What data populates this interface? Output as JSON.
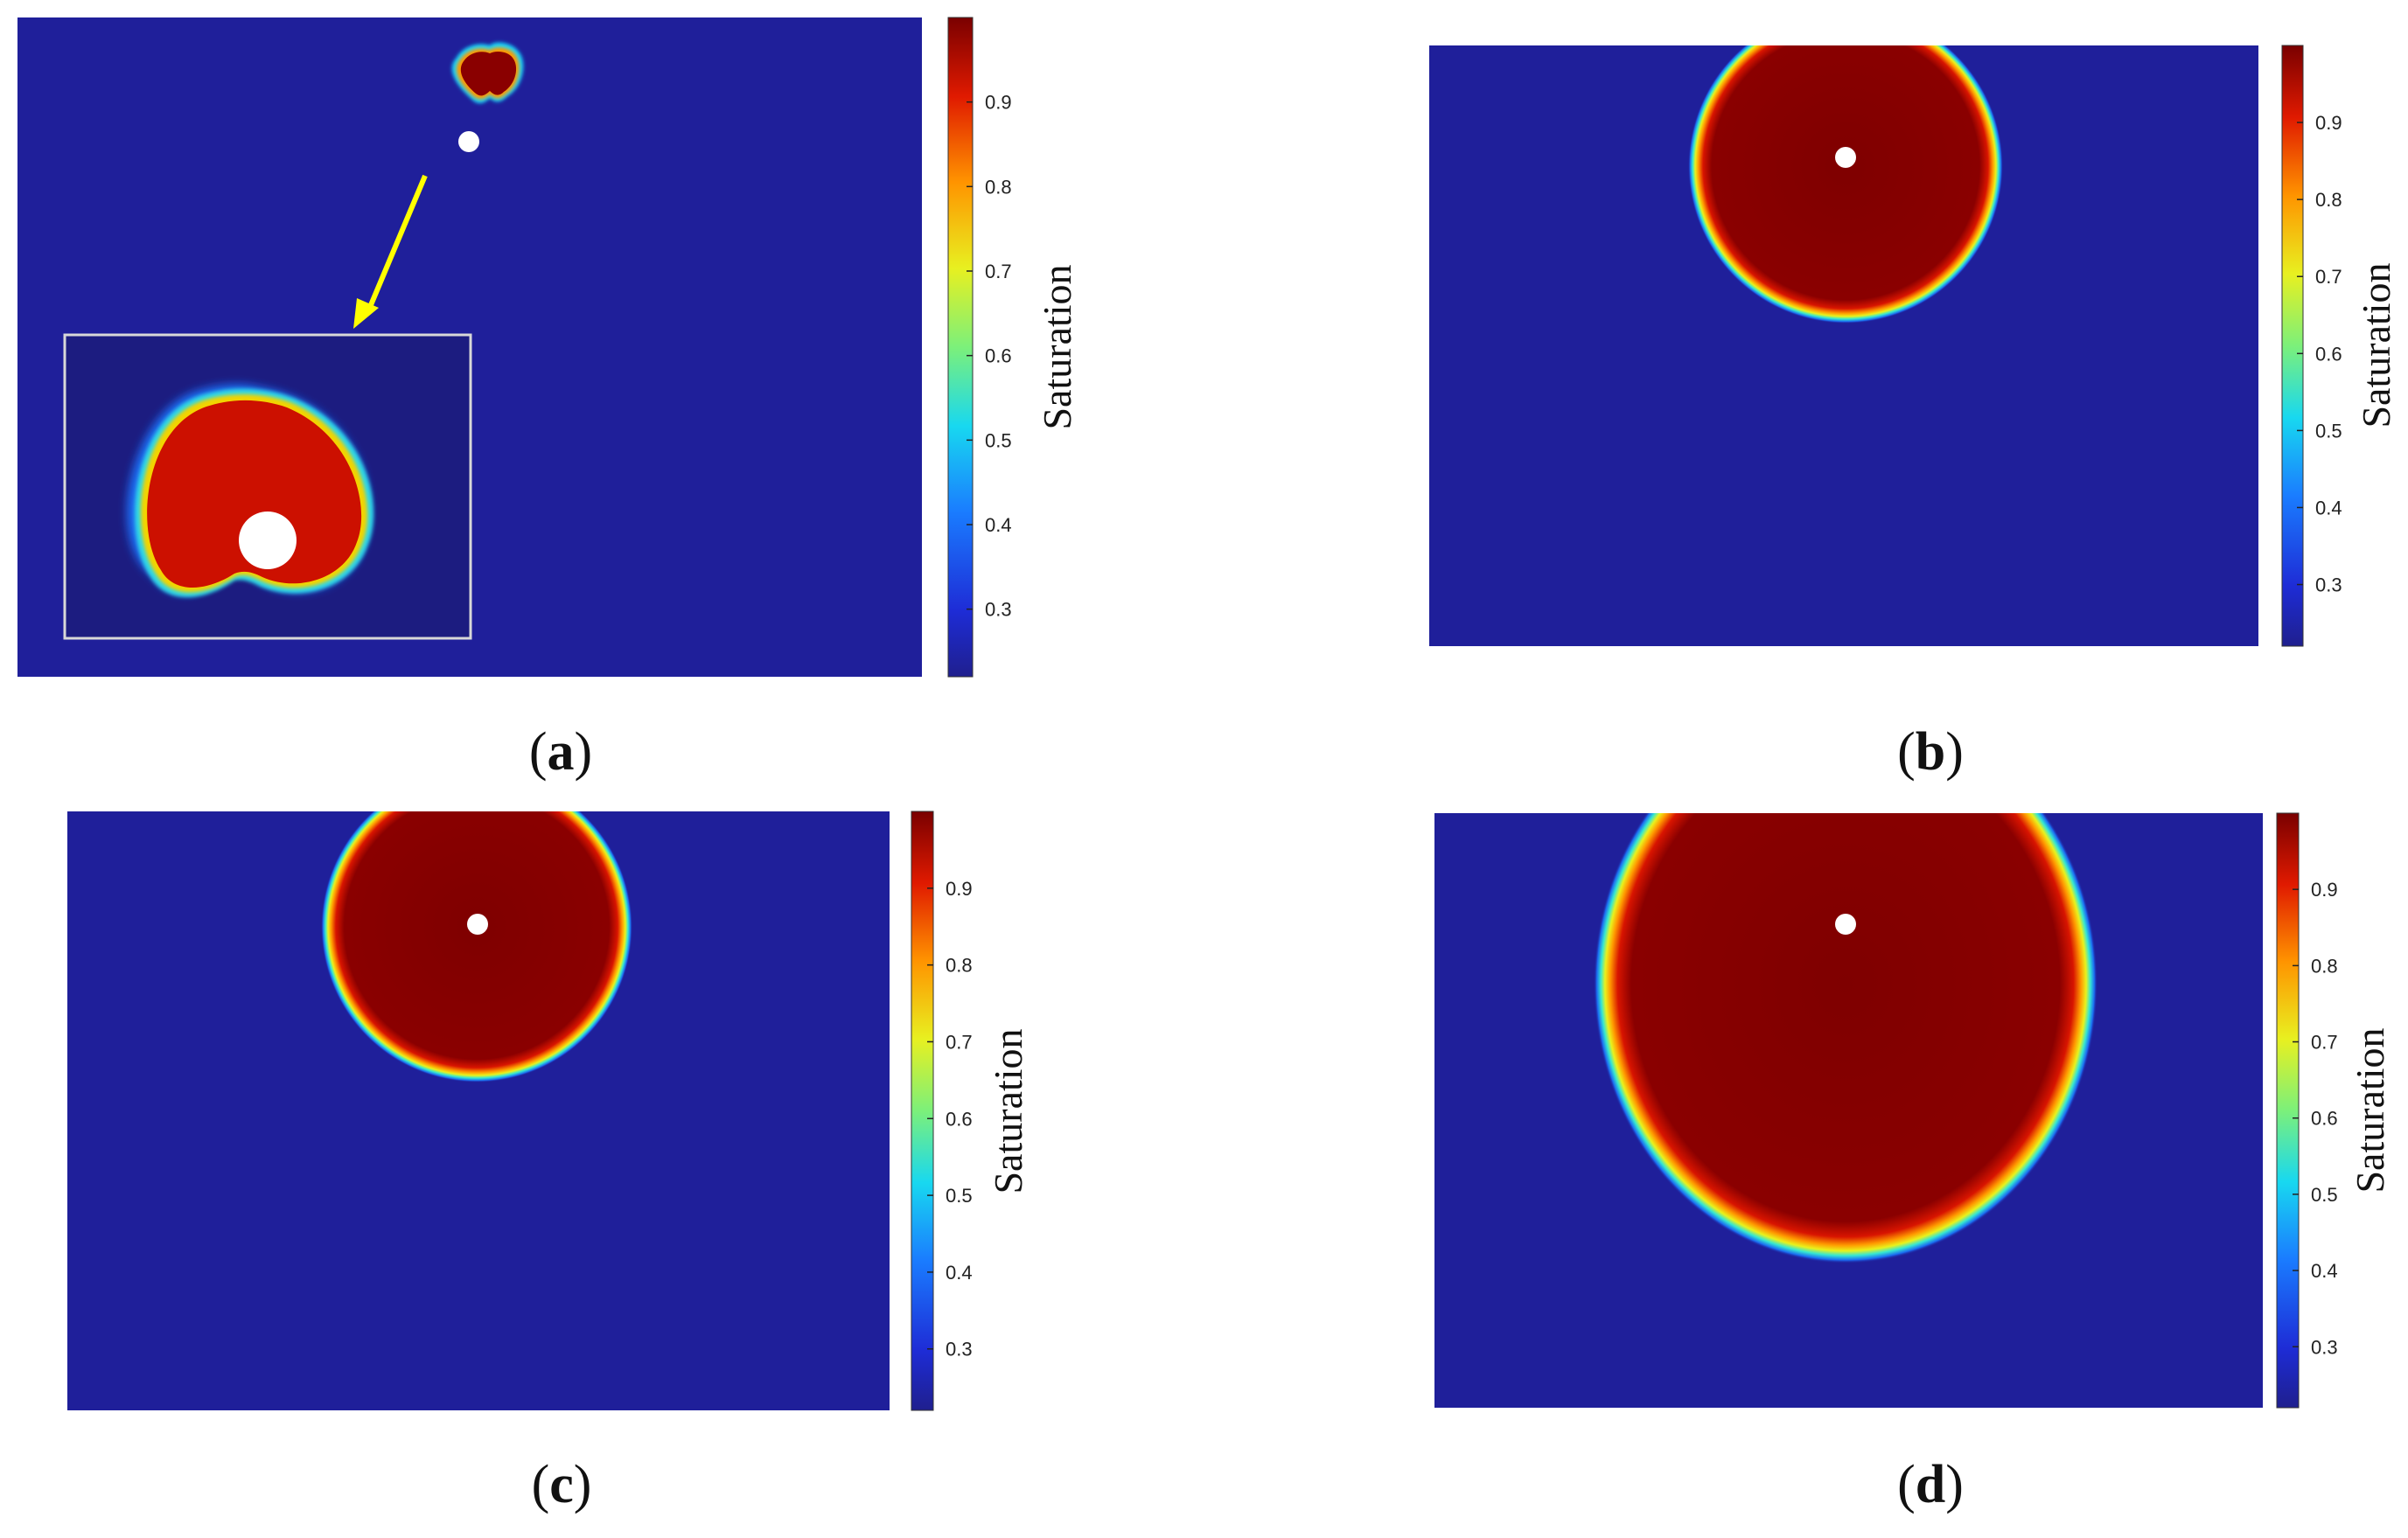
{
  "chart_data": [
    {
      "type": "heatmap",
      "panel_label": "a",
      "colorbar_label": "Saturation",
      "colorbar_ticks": [
        0.3,
        0.4,
        0.5,
        0.6,
        0.7,
        0.8,
        0.9
      ],
      "value_range": [
        0.22,
        1.0
      ],
      "colormap": "jet",
      "plume": {
        "shape": "heart",
        "inset_zoom": true,
        "arrow_color": "#ffff00"
      }
    },
    {
      "type": "heatmap",
      "panel_label": "b",
      "colorbar_label": "Saturation",
      "colorbar_ticks": [
        0.3,
        0.4,
        0.5,
        0.6,
        0.7,
        0.8,
        0.9
      ],
      "value_range": [
        0.22,
        1.0
      ],
      "colormap": "jet",
      "plume": {
        "shape": "circle"
      }
    },
    {
      "type": "heatmap",
      "panel_label": "c",
      "colorbar_label": "Saturation",
      "colorbar_ticks": [
        0.3,
        0.4,
        0.5,
        0.6,
        0.7,
        0.8,
        0.9
      ],
      "value_range": [
        0.22,
        1.0
      ],
      "colormap": "jet",
      "plume": {
        "shape": "circle"
      }
    },
    {
      "type": "heatmap",
      "panel_label": "d",
      "colorbar_label": "Saturation",
      "colorbar_ticks": [
        0.3,
        0.4,
        0.5,
        0.6,
        0.7,
        0.8,
        0.9
      ],
      "value_range": [
        0.22,
        1.0
      ],
      "colormap": "jet",
      "plume": {
        "shape": "circle"
      }
    }
  ],
  "colors": {
    "background_low": "#1f1f9a",
    "plume_high": "#7f0000",
    "inset_plume": "#cc1000",
    "well": "#ffffff",
    "inset_frame": "#d8d8d8"
  }
}
